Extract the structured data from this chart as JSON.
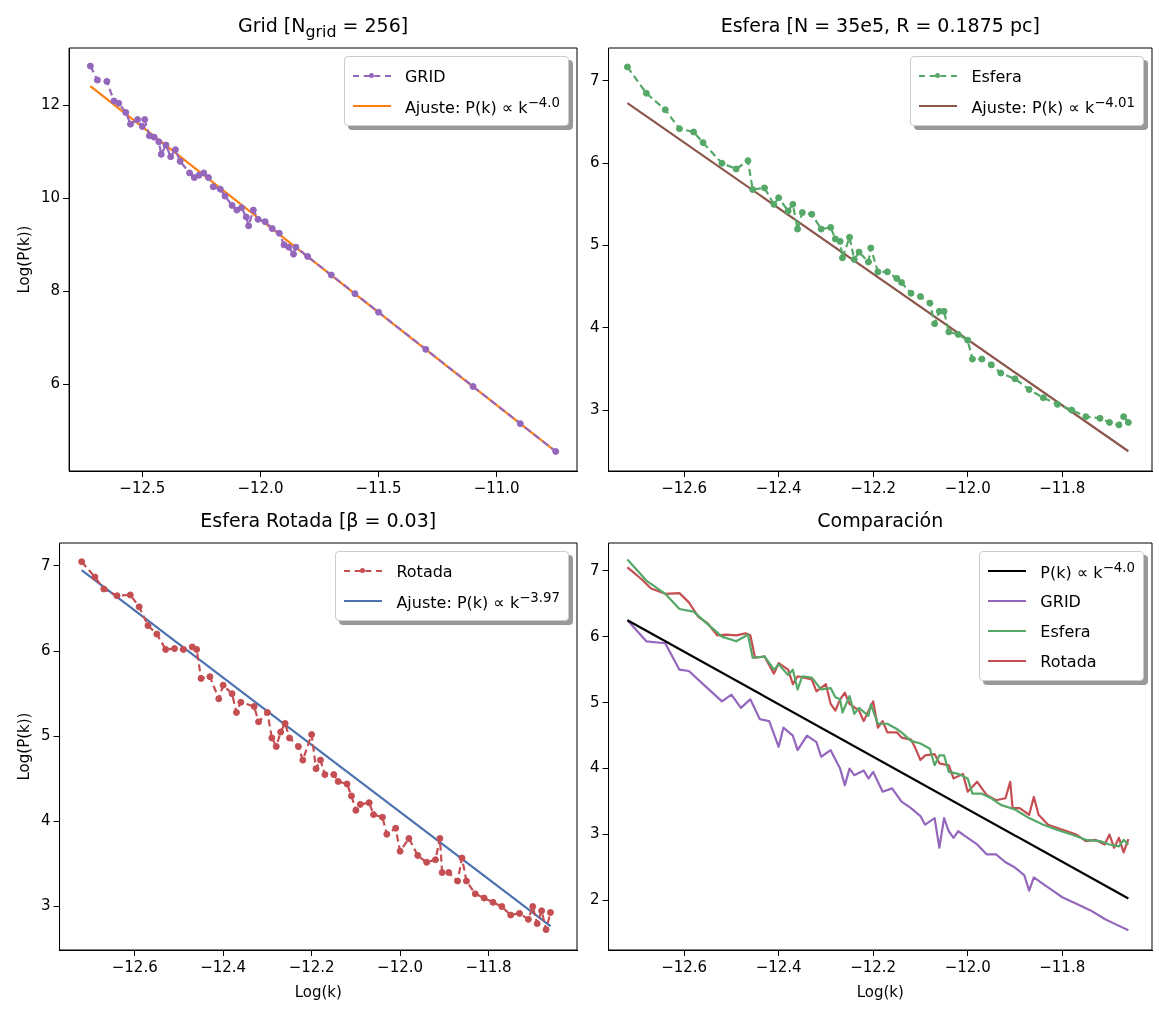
{
  "chart_data": [
    {
      "type": "line",
      "title": "Grid [N$_{grid}$ = 256]",
      "ylabel": "Log(P(k))",
      "xlim": [
        -12.81,
        -10.66
      ],
      "ylim": [
        4.13,
        13.24
      ],
      "xticks": [
        {
          "value": -12.5,
          "label": "−12.5"
        },
        {
          "value": -12,
          "label": "−12.0"
        },
        {
          "value": -11.5,
          "label": "−11.5"
        },
        {
          "value": -11,
          "label": "−11.0"
        }
      ],
      "yticks": [
        6,
        8,
        10,
        12
      ],
      "grid": false,
      "legend": "top right",
      "series": [
        {
          "name": "GRID",
          "color": "#9467bd",
          "marker": "circle",
          "line_style": "dashed",
          "x": [
            -12.72,
            -12.69,
            -12.65,
            -12.62,
            -12.6,
            -12.57,
            -12.55,
            -12.52,
            -12.5,
            -12.49,
            -12.47,
            -12.45,
            -12.43,
            -12.42,
            -12.4,
            -12.38,
            -12.36,
            -12.34,
            -12.3,
            -12.28,
            -12.26,
            -12.24,
            -12.22,
            -12.2,
            -12.17,
            -12.15,
            -12.12,
            -12.1,
            -12.08,
            -12.06,
            -12.05,
            -12.03,
            -12.01,
            -11.98,
            -11.95,
            -11.92,
            -11.9,
            -11.88,
            -11.86,
            -11.85,
            -11.8,
            -11.7,
            -11.6,
            -11.5,
            -11.3,
            -11.1,
            -10.9,
            -10.75
          ],
          "values": [
            12.85,
            12.55,
            12.52,
            12.1,
            12.05,
            11.85,
            11.6,
            11.7,
            11.55,
            11.7,
            11.35,
            11.32,
            11.22,
            10.95,
            11.15,
            10.9,
            11.05,
            10.8,
            10.55,
            10.45,
            10.5,
            10.55,
            10.45,
            10.25,
            10.2,
            10.05,
            9.85,
            9.75,
            9.8,
            9.6,
            9.41,
            9.75,
            9.55,
            9.5,
            9.35,
            9.25,
            9.0,
            8.95,
            8.8,
            8.95,
            8.75,
            8.35,
            7.95,
            7.55,
            6.75,
            5.95,
            5.15,
            4.55
          ]
        },
        {
          "name": "Ajuste: P(k) ∝ k$^{−4.0}$",
          "color": "#ff7f0e",
          "marker": "none",
          "line_style": "solid",
          "x": [
            -12.72,
            -10.75
          ],
          "values": [
            12.42,
            4.55
          ]
        }
      ]
    },
    {
      "type": "line",
      "title": "Esfera [N = 35e5, R = 0.1875 pc]",
      "xlim": [
        -12.76,
        -11.61
      ],
      "ylim": [
        2.26,
        7.4
      ],
      "xticks": [
        {
          "value": -12.6,
          "label": "−12.6"
        },
        {
          "value": -12.4,
          "label": "−12.4"
        },
        {
          "value": -12.2,
          "label": "−12.2"
        },
        {
          "value": -12,
          "label": "−12.0"
        },
        {
          "value": -11.8,
          "label": "−11.8"
        }
      ],
      "yticks": [
        3,
        4,
        5,
        6,
        7
      ],
      "grid": false,
      "legend": "top right",
      "series": [
        {
          "name": "Esfera",
          "color": "#55a868",
          "marker": "circle",
          "line_style": "dashed",
          "x": [
            -12.72,
            -12.68,
            -12.64,
            -12.61,
            -12.58,
            -12.56,
            -12.52,
            -12.49,
            -12.465,
            -12.455,
            -12.43,
            -12.41,
            -12.4,
            -12.38,
            -12.37,
            -12.36,
            -12.35,
            -12.33,
            -12.31,
            -12.29,
            -12.28,
            -12.27,
            -12.265,
            -12.25,
            -12.24,
            -12.23,
            -12.21,
            -12.205,
            -12.19,
            -12.17,
            -12.15,
            -12.14,
            -12.12,
            -12.1,
            -12.08,
            -12.07,
            -12.06,
            -12.05,
            -12.04,
            -12.02,
            -12.0,
            -11.99,
            -11.97,
            -11.95,
            -11.93,
            -11.9,
            -11.87,
            -11.84,
            -11.81,
            -11.78,
            -11.75,
            -11.72,
            -11.7,
            -11.68,
            -11.67,
            -11.66
          ],
          "values": [
            7.17,
            6.85,
            6.65,
            6.42,
            6.38,
            6.25,
            6.0,
            5.93,
            6.03,
            5.68,
            5.7,
            5.5,
            5.58,
            5.42,
            5.5,
            5.2,
            5.4,
            5.38,
            5.2,
            5.22,
            5.08,
            5.05,
            4.85,
            5.1,
            4.83,
            4.92,
            4.8,
            4.97,
            4.68,
            4.68,
            4.6,
            4.55,
            4.42,
            4.38,
            4.3,
            4.05,
            4.2,
            4.2,
            3.95,
            3.92,
            3.85,
            3.62,
            3.62,
            3.55,
            3.45,
            3.38,
            3.25,
            3.15,
            3.07,
            3.0,
            2.92,
            2.9,
            2.85,
            2.82,
            2.92,
            2.85
          ]
        },
        {
          "name": "Ajuste: P(k) ∝ k$^{−4.01}$",
          "color": "#8c564b",
          "marker": "none",
          "line_style": "solid",
          "x": [
            -12.72,
            -11.66
          ],
          "values": [
            6.73,
            2.5
          ]
        }
      ]
    },
    {
      "type": "line",
      "title": "Esfera Rotada [β = 0.03]",
      "xlabel": "Log(k)",
      "ylabel": "Log(P(k))",
      "xlim": [
        -12.77,
        -11.6
      ],
      "ylim": [
        2.49,
        7.27
      ],
      "xticks": [
        {
          "value": -12.6,
          "label": "−12.6"
        },
        {
          "value": -12.4,
          "label": "−12.4"
        },
        {
          "value": -12.2,
          "label": "−12.2"
        },
        {
          "value": -12,
          "label": "−12.0"
        },
        {
          "value": -11.8,
          "label": "−11.8"
        }
      ],
      "yticks": [
        3,
        4,
        5,
        6,
        7
      ],
      "grid": false,
      "legend": "top right",
      "series": [
        {
          "name": "Rotada",
          "color": "#c44e52",
          "marker": "circle",
          "line_style": "dashed",
          "x": [
            -12.72,
            -12.69,
            -12.67,
            -12.64,
            -12.61,
            -12.59,
            -12.57,
            -12.55,
            -12.53,
            -12.51,
            -12.49,
            -12.47,
            -12.46,
            -12.45,
            -12.43,
            -12.41,
            -12.4,
            -12.38,
            -12.37,
            -12.36,
            -12.33,
            -12.32,
            -12.3,
            -12.29,
            -12.28,
            -12.27,
            -12.26,
            -12.25,
            -12.23,
            -12.22,
            -12.2,
            -12.19,
            -12.18,
            -12.17,
            -12.15,
            -12.14,
            -12.12,
            -12.11,
            -12.1,
            -12.09,
            -12.07,
            -12.06,
            -12.04,
            -12.03,
            -12.01,
            -12.0,
            -11.98,
            -11.96,
            -11.94,
            -11.92,
            -11.91,
            -11.905,
            -11.89,
            -11.87,
            -11.86,
            -11.85,
            -11.83,
            -11.81,
            -11.79,
            -11.77,
            -11.75,
            -11.73,
            -11.71,
            -11.7,
            -11.69,
            -11.68,
            -11.67,
            -11.66
          ],
          "values": [
            7.05,
            6.87,
            6.73,
            6.65,
            6.66,
            6.52,
            6.3,
            6.2,
            6.02,
            6.03,
            6.02,
            6.05,
            6.02,
            5.68,
            5.7,
            5.44,
            5.6,
            5.5,
            5.28,
            5.4,
            5.35,
            5.17,
            5.28,
            4.98,
            4.88,
            5.05,
            5.15,
            4.98,
            4.88,
            4.72,
            5.02,
            4.62,
            4.72,
            4.55,
            4.55,
            4.47,
            4.44,
            4.3,
            4.13,
            4.2,
            4.22,
            4.08,
            4.05,
            3.85,
            3.92,
            3.65,
            3.8,
            3.6,
            3.52,
            3.55,
            3.8,
            3.4,
            3.4,
            3.3,
            3.57,
            3.3,
            3.15,
            3.1,
            3.05,
            3.0,
            2.9,
            2.92,
            2.85,
            3.0,
            2.8,
            2.95,
            2.73,
            2.93
          ]
        },
        {
          "name": "Ajuste: P(k) ∝ k$^{−3.97}$",
          "color": "#4c72b0",
          "marker": "none",
          "line_style": "solid",
          "x": [
            -12.72,
            -11.66
          ],
          "values": [
            6.95,
            2.77
          ]
        }
      ]
    },
    {
      "type": "line",
      "title": "Comparación",
      "xlabel": "Log(k)",
      "xlim": [
        -12.76,
        -11.61
      ],
      "ylim": [
        1.25,
        7.42
      ],
      "xticks": [
        {
          "value": -12.6,
          "label": "−12.6"
        },
        {
          "value": -12.4,
          "label": "−12.4"
        },
        {
          "value": -12.2,
          "label": "−12.2"
        },
        {
          "value": -12,
          "label": "−12.0"
        },
        {
          "value": -11.8,
          "label": "−11.8"
        }
      ],
      "yticks": [
        2,
        3,
        4,
        5,
        6,
        7
      ],
      "grid": false,
      "legend": "top right",
      "marker": "none",
      "line_style": "solid",
      "series": [
        {
          "name": "P(k) ∝ k$^{−4.0}$",
          "color": "#000000",
          "x": [
            -12.72,
            -11.66
          ],
          "values": [
            6.25,
            2.03
          ]
        },
        {
          "name": "GRID",
          "color": "#9467bd",
          "x": [
            -12.72,
            -12.68,
            -12.64,
            -12.61,
            -12.59,
            -12.56,
            -12.52,
            -12.5,
            -12.48,
            -12.46,
            -12.44,
            -12.42,
            -12.4,
            -12.39,
            -12.37,
            -12.36,
            -12.34,
            -12.32,
            -12.31,
            -12.29,
            -12.27,
            -12.26,
            -12.25,
            -12.24,
            -12.22,
            -12.21,
            -12.2,
            -12.18,
            -12.16,
            -12.14,
            -12.12,
            -12.1,
            -12.09,
            -12.07,
            -12.06,
            -12.05,
            -12.04,
            -12.03,
            -12.02,
            -12.0,
            -11.98,
            -11.96,
            -11.94,
            -11.92,
            -11.9,
            -11.88,
            -11.87,
            -11.86,
            -11.84,
            -11.82,
            -11.8,
            -11.77,
            -11.74,
            -11.71,
            -11.69,
            -11.66
          ],
          "values": [
            6.25,
            5.93,
            5.9,
            5.5,
            5.48,
            5.28,
            5.02,
            5.12,
            4.92,
            5.05,
            4.75,
            4.72,
            4.33,
            4.62,
            4.5,
            4.28,
            4.5,
            4.4,
            4.18,
            4.28,
            4.0,
            3.75,
            4.0,
            3.9,
            3.97,
            3.85,
            3.95,
            3.65,
            3.7,
            3.5,
            3.4,
            3.28,
            3.15,
            3.25,
            2.8,
            3.25,
            3.05,
            2.95,
            3.05,
            2.95,
            2.85,
            2.7,
            2.7,
            2.58,
            2.5,
            2.38,
            2.15,
            2.35,
            2.25,
            2.15,
            2.05,
            1.95,
            1.85,
            1.72,
            1.65,
            1.55
          ]
        },
        {
          "name": "Esfera",
          "color": "#55a868",
          "x": [
            -12.72,
            -12.68,
            -12.64,
            -12.61,
            -12.58,
            -12.56,
            -12.52,
            -12.49,
            -12.465,
            -12.455,
            -12.43,
            -12.41,
            -12.4,
            -12.38,
            -12.37,
            -12.36,
            -12.35,
            -12.33,
            -12.31,
            -12.29,
            -12.28,
            -12.27,
            -12.265,
            -12.25,
            -12.24,
            -12.23,
            -12.21,
            -12.205,
            -12.19,
            -12.17,
            -12.15,
            -12.14,
            -12.12,
            -12.1,
            -12.08,
            -12.07,
            -12.06,
            -12.05,
            -12.04,
            -12.02,
            -12.0,
            -11.99,
            -11.97,
            -11.95,
            -11.93,
            -11.9,
            -11.87,
            -11.84,
            -11.81,
            -11.78,
            -11.75,
            -11.72,
            -11.7,
            -11.68,
            -11.67,
            -11.66
          ],
          "values": [
            7.17,
            6.85,
            6.65,
            6.42,
            6.38,
            6.25,
            6.0,
            5.93,
            6.03,
            5.68,
            5.7,
            5.5,
            5.58,
            5.42,
            5.5,
            5.2,
            5.4,
            5.38,
            5.2,
            5.22,
            5.08,
            5.05,
            4.85,
            5.1,
            4.83,
            4.92,
            4.8,
            4.97,
            4.68,
            4.68,
            4.6,
            4.55,
            4.42,
            4.38,
            4.3,
            4.05,
            4.2,
            4.2,
            3.95,
            3.92,
            3.85,
            3.62,
            3.62,
            3.55,
            3.45,
            3.38,
            3.25,
            3.15,
            3.07,
            3.0,
            2.92,
            2.9,
            2.85,
            2.82,
            2.92,
            2.85
          ]
        },
        {
          "name": "Rotada",
          "color": "#c44e52",
          "x": [
            -12.72,
            -12.69,
            -12.67,
            -12.64,
            -12.61,
            -12.59,
            -12.57,
            -12.55,
            -12.53,
            -12.51,
            -12.49,
            -12.47,
            -12.46,
            -12.45,
            -12.43,
            -12.41,
            -12.4,
            -12.38,
            -12.37,
            -12.36,
            -12.33,
            -12.32,
            -12.3,
            -12.29,
            -12.28,
            -12.27,
            -12.26,
            -12.25,
            -12.23,
            -12.22,
            -12.2,
            -12.19,
            -12.18,
            -12.17,
            -12.15,
            -12.14,
            -12.12,
            -12.11,
            -12.1,
            -12.09,
            -12.07,
            -12.06,
            -12.04,
            -12.03,
            -12.01,
            -12.0,
            -11.98,
            -11.96,
            -11.94,
            -11.92,
            -11.91,
            -11.905,
            -11.89,
            -11.87,
            -11.86,
            -11.85,
            -11.83,
            -11.81,
            -11.79,
            -11.77,
            -11.75,
            -11.73,
            -11.71,
            -11.7,
            -11.69,
            -11.68,
            -11.67,
            -11.66
          ],
          "values": [
            7.05,
            6.87,
            6.73,
            6.65,
            6.66,
            6.52,
            6.3,
            6.2,
            6.02,
            6.03,
            6.02,
            6.05,
            6.02,
            5.68,
            5.7,
            5.44,
            5.6,
            5.5,
            5.28,
            5.4,
            5.35,
            5.17,
            5.28,
            4.98,
            4.88,
            5.05,
            5.15,
            4.98,
            4.88,
            4.72,
            5.02,
            4.62,
            4.72,
            4.55,
            4.55,
            4.47,
            4.44,
            4.3,
            4.13,
            4.2,
            4.22,
            4.08,
            4.05,
            3.85,
            3.92,
            3.65,
            3.8,
            3.6,
            3.52,
            3.55,
            3.8,
            3.4,
            3.4,
            3.3,
            3.57,
            3.3,
            3.15,
            3.1,
            3.05,
            3.0,
            2.9,
            2.92,
            2.85,
            3.0,
            2.8,
            2.95,
            2.73,
            2.93
          ]
        }
      ]
    }
  ]
}
